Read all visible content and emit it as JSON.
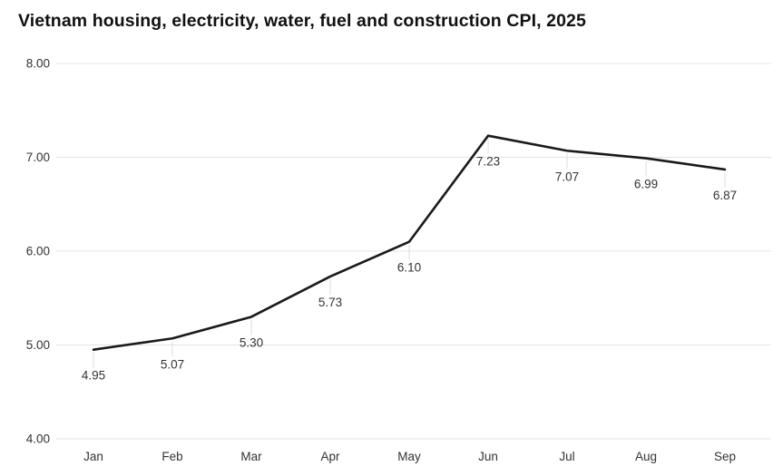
{
  "title": "Vietnam housing, electricity, water, fuel and construction CPI, 2025",
  "chart_data": {
    "type": "line",
    "title": "Vietnam housing, electricity, water, fuel and construction CPI, 2025",
    "categories": [
      "Jan",
      "Feb",
      "Mar",
      "Apr",
      "May",
      "Jun",
      "Jul",
      "Aug",
      "Sep"
    ],
    "values": [
      4.95,
      5.07,
      5.3,
      5.73,
      6.1,
      7.23,
      7.07,
      6.99,
      6.87
    ],
    "data_labels": [
      "4.95",
      "5.07",
      "5.30",
      "5.73",
      "6.10",
      "7.23",
      "7.07",
      "6.99",
      "6.87"
    ],
    "xlabel": "",
    "ylabel": "",
    "ylim": [
      4,
      8
    ],
    "yticks": [
      {
        "value": 4,
        "label": "4.00"
      },
      {
        "value": 5,
        "label": "5.00"
      },
      {
        "value": 6,
        "label": "6.00"
      },
      {
        "value": 7,
        "label": "7.00"
      },
      {
        "value": 8,
        "label": "8.00"
      }
    ],
    "grid": "horizontal",
    "legend": "none",
    "colors": {
      "line": "#1a1a1a",
      "grid": "#e4e4e4",
      "tick_label": "#333333",
      "data_label": "#333333",
      "leader": "#dcdcdc",
      "background": "#ffffff"
    }
  }
}
